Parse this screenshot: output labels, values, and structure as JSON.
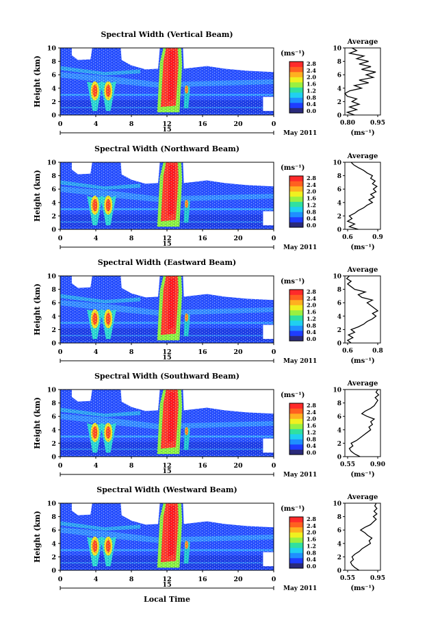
{
  "chart_data": {
    "type": "heatmap",
    "xlabel": "Local Time",
    "date_label": "May 2011",
    "day_label": "15",
    "xlim": [
      0,
      24
    ],
    "x_ticks": [
      "0",
      "4",
      "8",
      "12",
      "16",
      "20",
      "0"
    ],
    "ylabel": "Height (km)",
    "ylim": [
      0,
      10
    ],
    "y_ticks": [
      "0",
      "2",
      "4",
      "6",
      "8",
      "10"
    ],
    "colorbar": {
      "unit": "(ms⁻¹)",
      "ticks": [
        "0.0",
        "0.4",
        "0.8",
        "1.2",
        "1.6",
        "2.0",
        "2.4",
        "2.8"
      ],
      "range": [
        0.0,
        2.8
      ],
      "colors": [
        "#2a2a7a",
        "#1f3dff",
        "#1f8fff",
        "#20d0f0",
        "#30e0a0",
        "#9af040",
        "#f0f020",
        "#ffb020",
        "#ff6020",
        "#ff2a2a"
      ]
    },
    "avg_title": "Average",
    "avg_xlabel": "(ms⁻¹)",
    "panels": [
      {
        "title": "Spectral Width (Vertical Beam)",
        "avg_xlim": [
          0.8,
          0.95
        ],
        "avg_ticks": [
          "0.80",
          "0.95"
        ],
        "avg_profile": [
          [
            0.0,
            0.84
          ],
          [
            0.4,
            0.81
          ],
          [
            0.8,
            0.85
          ],
          [
            1.2,
            0.82
          ],
          [
            1.6,
            0.86
          ],
          [
            2.0,
            0.83
          ],
          [
            2.4,
            0.85
          ],
          [
            2.8,
            0.81
          ],
          [
            3.2,
            0.8
          ],
          [
            3.6,
            0.82
          ],
          [
            4.0,
            0.87
          ],
          [
            4.4,
            0.84
          ],
          [
            4.8,
            0.9
          ],
          [
            5.2,
            0.86
          ],
          [
            5.6,
            0.92
          ],
          [
            6.0,
            0.89
          ],
          [
            6.4,
            0.93
          ],
          [
            6.8,
            0.87
          ],
          [
            7.2,
            0.91
          ],
          [
            7.6,
            0.86
          ],
          [
            8.0,
            0.9
          ],
          [
            8.4,
            0.85
          ],
          [
            8.8,
            0.88
          ],
          [
            9.2,
            0.82
          ],
          [
            9.6,
            0.85
          ],
          [
            10.0,
            0.83
          ]
        ]
      },
      {
        "title": "Spectral Width (Northward Beam)",
        "avg_xlim": [
          0.55,
          0.95
        ],
        "avg_ticks": [
          "0.6",
          "0.9"
        ],
        "avg_profile": [
          [
            0.0,
            0.7
          ],
          [
            0.4,
            0.6
          ],
          [
            0.8,
            0.66
          ],
          [
            1.2,
            0.58
          ],
          [
            1.6,
            0.63
          ],
          [
            2.0,
            0.6
          ],
          [
            2.4,
            0.66
          ],
          [
            2.8,
            0.7
          ],
          [
            3.2,
            0.76
          ],
          [
            3.6,
            0.8
          ],
          [
            4.0,
            0.86
          ],
          [
            4.4,
            0.82
          ],
          [
            4.8,
            0.88
          ],
          [
            5.2,
            0.84
          ],
          [
            5.6,
            0.9
          ],
          [
            6.0,
            0.87
          ],
          [
            6.4,
            0.91
          ],
          [
            6.8,
            0.86
          ],
          [
            7.2,
            0.89
          ],
          [
            7.6,
            0.84
          ],
          [
            8.0,
            0.86
          ],
          [
            8.4,
            0.8
          ],
          [
            8.8,
            0.76
          ],
          [
            9.2,
            0.7
          ],
          [
            9.6,
            0.65
          ],
          [
            10.0,
            0.62
          ]
        ]
      },
      {
        "title": "Spectral Width (Eastward Beam)",
        "avg_xlim": [
          0.55,
          0.95
        ],
        "avg_ticks": [
          "0.6",
          "0.8"
        ],
        "avg_profile": [
          [
            0.0,
            0.62
          ],
          [
            0.4,
            0.58
          ],
          [
            0.8,
            0.64
          ],
          [
            1.2,
            0.59
          ],
          [
            1.6,
            0.66
          ],
          [
            2.0,
            0.62
          ],
          [
            2.4,
            0.7
          ],
          [
            2.8,
            0.76
          ],
          [
            3.2,
            0.8
          ],
          [
            3.6,
            0.86
          ],
          [
            4.0,
            0.9
          ],
          [
            4.4,
            0.86
          ],
          [
            4.8,
            0.92
          ],
          [
            5.2,
            0.88
          ],
          [
            5.6,
            0.84
          ],
          [
            6.0,
            0.8
          ],
          [
            6.4,
            0.86
          ],
          [
            6.8,
            0.74
          ],
          [
            7.2,
            0.7
          ],
          [
            7.6,
            0.78
          ],
          [
            8.0,
            0.66
          ],
          [
            8.4,
            0.62
          ],
          [
            8.8,
            0.58
          ],
          [
            9.2,
            0.62
          ],
          [
            9.6,
            0.57
          ],
          [
            10.0,
            0.6
          ]
        ]
      },
      {
        "title": "Spectral Width (Southward Beam)",
        "avg_xlim": [
          0.55,
          0.95
        ],
        "avg_ticks": [
          "0.55",
          "0.90"
        ],
        "avg_profile": [
          [
            0.0,
            0.72
          ],
          [
            0.4,
            0.66
          ],
          [
            0.8,
            0.62
          ],
          [
            1.2,
            0.6
          ],
          [
            1.6,
            0.64
          ],
          [
            2.0,
            0.62
          ],
          [
            2.4,
            0.68
          ],
          [
            2.8,
            0.72
          ],
          [
            3.2,
            0.76
          ],
          [
            3.6,
            0.8
          ],
          [
            4.0,
            0.84
          ],
          [
            4.4,
            0.82
          ],
          [
            4.8,
            0.86
          ],
          [
            5.2,
            0.84
          ],
          [
            5.6,
            0.88
          ],
          [
            6.0,
            0.8
          ],
          [
            6.4,
            0.74
          ],
          [
            6.8,
            0.78
          ],
          [
            7.2,
            0.84
          ],
          [
            7.6,
            0.88
          ],
          [
            8.0,
            0.9
          ],
          [
            8.4,
            0.92
          ],
          [
            8.8,
            0.89
          ],
          [
            9.2,
            0.93
          ],
          [
            9.6,
            0.9
          ],
          [
            10.0,
            0.92
          ]
        ]
      },
      {
        "title": "Spectral Width (Westward Beam)",
        "avg_xlim": [
          0.5,
          1.0
        ],
        "avg_ticks": [
          "0.55",
          "0.95"
        ],
        "avg_profile": [
          [
            0.0,
            0.7
          ],
          [
            0.4,
            0.64
          ],
          [
            0.8,
            0.6
          ],
          [
            1.2,
            0.58
          ],
          [
            1.6,
            0.62
          ],
          [
            2.0,
            0.6
          ],
          [
            2.4,
            0.64
          ],
          [
            2.8,
            0.7
          ],
          [
            3.2,
            0.74
          ],
          [
            3.6,
            0.8
          ],
          [
            4.0,
            0.86
          ],
          [
            4.4,
            0.84
          ],
          [
            4.8,
            0.88
          ],
          [
            5.2,
            0.82
          ],
          [
            5.6,
            0.78
          ],
          [
            6.0,
            0.72
          ],
          [
            6.4,
            0.78
          ],
          [
            6.8,
            0.86
          ],
          [
            7.2,
            0.9
          ],
          [
            7.6,
            0.94
          ],
          [
            8.0,
            0.9
          ],
          [
            8.4,
            0.95
          ],
          [
            8.8,
            0.91
          ],
          [
            9.2,
            0.95
          ],
          [
            9.6,
            0.92
          ],
          [
            10.0,
            0.94
          ]
        ]
      }
    ]
  }
}
